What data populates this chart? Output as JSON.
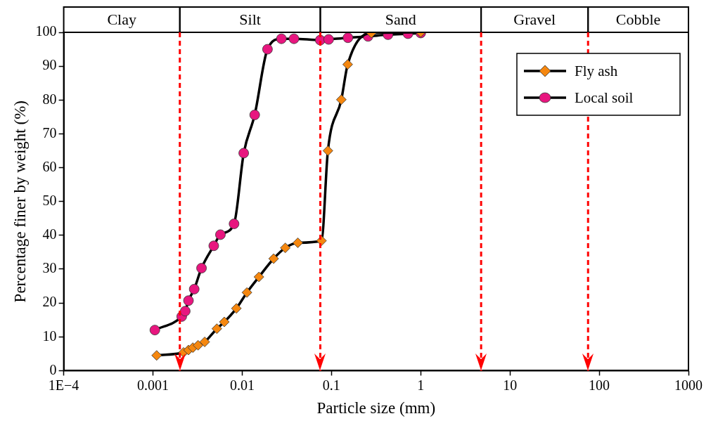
{
  "chart_data": {
    "type": "line",
    "xlabel": "Particle size (mm)",
    "ylabel": "Percentage finer by weight (%)",
    "log": "x",
    "grid": false,
    "legend": "top right",
    "xlim": [
      0.0001,
      1000
    ],
    "xticks": [
      {
        "value": 0.0001,
        "label": "1E−4"
      },
      0.001,
      0.01,
      0.1,
      1,
      10,
      100,
      1000
    ],
    "ylim": [
      0,
      100
    ],
    "yticks": [
      0,
      10,
      20,
      30,
      40,
      50,
      60,
      70,
      80,
      90,
      100
    ],
    "series": [
      {
        "name": "Fly ash",
        "color": "#f5870f",
        "marker": "diamond",
        "x": [
          0.0011,
          0.0022,
          0.0025,
          0.0028,
          0.0032,
          0.0038,
          0.0052,
          0.0063,
          0.0086,
          0.0113,
          0.0154,
          0.0225,
          0.0304,
          0.042,
          0.0773,
          0.0912,
          0.129,
          0.152,
          0.28,
          1
        ],
        "values": [
          4.5,
          5.4,
          6.1,
          6.8,
          7.5,
          8.5,
          12.4,
          14.4,
          18.4,
          23.1,
          27.7,
          33.1,
          36.3,
          37.8,
          38.4,
          65.0,
          80.1,
          90.5,
          99.8,
          100
        ]
      },
      {
        "name": "Local soil",
        "color": "#e8167f",
        "marker": "circle",
        "x": [
          0.00105,
          0.0021,
          0.0023,
          0.0025,
          0.0029,
          0.0035,
          0.0048,
          0.0057,
          0.0081,
          0.0104,
          0.0138,
          0.0192,
          0.0275,
          0.038,
          0.0748,
          0.093,
          0.153,
          0.257,
          0.43,
          0.72,
          1.0
        ],
        "values": [
          12.0,
          16.0,
          17.6,
          20.7,
          24.1,
          30.3,
          36.9,
          40.2,
          43.4,
          64.3,
          75.6,
          95.0,
          98.1,
          98.1,
          97.7,
          97.9,
          98.4,
          98.8,
          99.3,
          99.6,
          99.8
        ]
      }
    ],
    "ref_lines": [
      {
        "axis": "x",
        "value": 0.002,
        "color": "#ff0000",
        "line_style": "dashed"
      },
      {
        "axis": "x",
        "value": 0.075,
        "color": "#ff0000",
        "line_style": "dashed"
      },
      {
        "axis": "x",
        "value": 4.75,
        "color": "#ff0000",
        "line_style": "dashed"
      },
      {
        "axis": "x",
        "value": 75,
        "color": "#ff0000",
        "line_style": "dashed"
      }
    ],
    "annotations": [
      "Clay",
      "Silt",
      "Sand",
      "Gravel",
      "Cobble"
    ]
  }
}
